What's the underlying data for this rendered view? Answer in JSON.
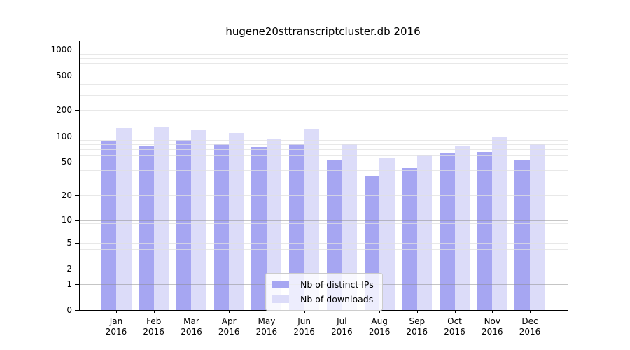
{
  "chart_data": {
    "type": "bar",
    "title": "hugene20sttranscriptcluster.db 2016",
    "year": "2016",
    "categories": [
      "Jan",
      "Feb",
      "Mar",
      "Apr",
      "May",
      "Jun",
      "Jul",
      "Aug",
      "Sep",
      "Oct",
      "Nov",
      "Dec"
    ],
    "series": [
      {
        "name": "Nb of distinct IPs",
        "color": "#a6a6f2",
        "values": [
          88,
          78,
          90,
          81,
          75,
          80,
          52,
          34,
          42,
          64,
          66,
          53
        ]
      },
      {
        "name": "Nb of downloads",
        "color": "#dcdcf9",
        "values": [
          123,
          126,
          117,
          109,
          94,
          122,
          80,
          55,
          61,
          77,
          98,
          82
        ]
      }
    ],
    "y_ticks": [
      0,
      1,
      2,
      5,
      10,
      20,
      50,
      100,
      200,
      500,
      1000
    ],
    "y_tick_labels": [
      "0",
      "1",
      "2",
      "5",
      "10",
      "20",
      "50",
      "100",
      "200",
      "500",
      "1000"
    ],
    "scale": "log10(1+x)",
    "grid": true,
    "legend_position": "bottom-center",
    "colors": {
      "spine": "#000000",
      "grid_major": "#8c8c8c",
      "grid_minor": "#e0e0e0",
      "background": "#ffffff"
    }
  }
}
